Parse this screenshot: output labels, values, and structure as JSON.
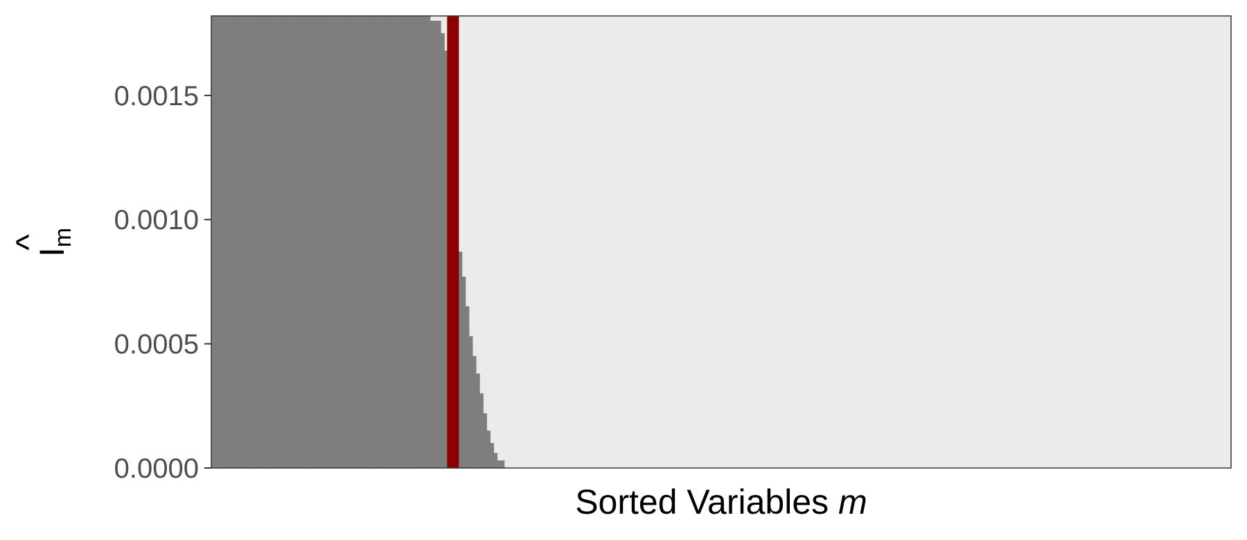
{
  "chart_data": {
    "type": "bar",
    "xlabel": "Sorted Variables",
    "xlabel_italic": "m",
    "ylabel": "I",
    "ylabel_hat": "^",
    "ylabel_subscript": "m",
    "ylim": [
      0,
      0.00182
    ],
    "y_ticks": [
      0,
      0.0005,
      0.001,
      0.0015
    ],
    "y_tick_labels": [
      "0.0000",
      "0.0005",
      "0.0010",
      "0.0015"
    ],
    "n_variables": 289,
    "n_nonzero_bars": 83,
    "cutoff_index": 68,
    "y_values": [
      0.0019,
      0.0019,
      0.0019,
      0.0019,
      0.0019,
      0.0019,
      0.0019,
      0.0019,
      0.0019,
      0.0019,
      0.0019,
      0.0019,
      0.0019,
      0.0019,
      0.0019,
      0.0019,
      0.0019,
      0.0019,
      0.0019,
      0.0019,
      0.0019,
      0.0019,
      0.0019,
      0.0019,
      0.0019,
      0.0019,
      0.0019,
      0.0019,
      0.0019,
      0.0019,
      0.0019,
      0.0019,
      0.0019,
      0.0019,
      0.0019,
      0.0019,
      0.0019,
      0.0019,
      0.0019,
      0.0019,
      0.0019,
      0.0019,
      0.0019,
      0.0019,
      0.0019,
      0.0019,
      0.0019,
      0.0019,
      0.0019,
      0.0019,
      0.0019,
      0.0019,
      0.0019,
      0.0019,
      0.0019,
      0.0019,
      0.0019,
      0.0019,
      0.0019,
      0.0019,
      0.0019,
      0.0019,
      0.0018,
      0.0018,
      0.0018,
      0.00175,
      0.00168,
      0.00162,
      0.0016,
      0.00093,
      0.00087,
      0.00077,
      0.00065,
      0.00053,
      0.00045,
      0.00038,
      0.0003,
      0.00022,
      0.00015,
      0.0001,
      6e-05,
      3e-05,
      3e-05
    ],
    "bar_color": "#7f7f7f",
    "bar_edge_color": "#757575",
    "cutoff_color": "#8b0000",
    "panel_background": "#ebebeb",
    "grid": false,
    "legend": "none"
  }
}
